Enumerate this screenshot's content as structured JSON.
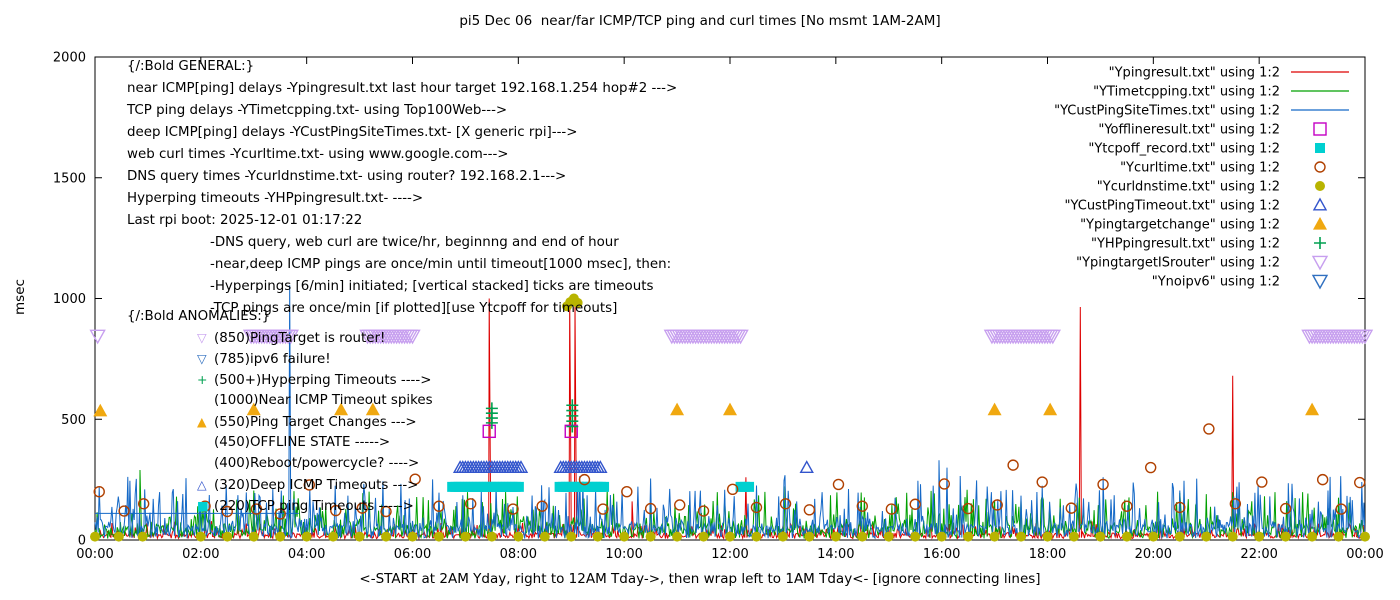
{
  "chart_data": {
    "type": "line+scatter",
    "title": "pi5 Dec 06  near/far ICMP/TCP ping and curl times [No msmt 1AM-2AM]",
    "ylabel": "msec",
    "xlabel": "<-START at 2AM Yday, right to 12AM Tday->, then wrap left to 1AM Tday<- [ignore connecting lines]",
    "xlim": [
      0,
      24
    ],
    "ylim": [
      0,
      2000
    ],
    "xticks": [
      "00:00",
      "02:00",
      "04:00",
      "06:00",
      "08:00",
      "10:00",
      "12:00",
      "14:00",
      "16:00",
      "18:00",
      "20:00",
      "22:00",
      "00:00"
    ],
    "yticks": [
      0,
      500,
      1000,
      1500,
      2000
    ],
    "grid": false,
    "legend_position": "top-right-inside",
    "series": [
      {
        "name": "Ypingresult",
        "legend": "\"Ypingresult.txt\" using 1:2",
        "style": "line",
        "color": "#dd0000",
        "width": 1,
        "gen": {
          "seed": 11,
          "base": 22,
          "amp": 55,
          "step": 0.02
        },
        "spikes": [
          [
            7.45,
            1000
          ],
          [
            8.97,
            1000
          ],
          [
            9.07,
            985
          ],
          [
            10.15,
            160
          ],
          [
            12.3,
            260
          ],
          [
            18.62,
            965
          ],
          [
            21.5,
            680
          ]
        ]
      },
      {
        "name": "YTimetcpping",
        "legend": "\"YTimetcpping.txt\" using 1:2",
        "style": "line",
        "color": "#00a000",
        "width": 1,
        "gen": {
          "seed": 22,
          "base": 55,
          "amp": 170,
          "step": 0.02
        },
        "spikes": [
          [
            0.85,
            290
          ],
          [
            3.0,
            205
          ],
          [
            6.3,
            165
          ],
          [
            10.5,
            175
          ],
          [
            13.9,
            185
          ],
          [
            17.5,
            165
          ],
          [
            21.0,
            190
          ],
          [
            23.5,
            175
          ]
        ]
      },
      {
        "name": "YCustPingSiteTimes",
        "legend": "\"YCustPingSiteTimes.txt\" using 1:2",
        "style": "line",
        "color": "#1569c7",
        "width": 1,
        "gen": {
          "seed": 33,
          "base": 60,
          "amp": 210,
          "step": 0.02
        },
        "spikes": [
          [
            3.68,
            1055
          ],
          [
            6.95,
            185
          ],
          [
            7.3,
            205
          ],
          [
            8.9,
            195
          ],
          [
            9.3,
            185
          ],
          [
            15.55,
            245
          ],
          [
            15.95,
            330
          ],
          [
            16.1,
            300
          ],
          [
            16.35,
            265
          ],
          [
            19.05,
            260
          ],
          [
            20.5,
            205
          ],
          [
            22.55,
            235
          ],
          [
            23.3,
            205
          ]
        ],
        "segments": [
          {
            "y": 110,
            "x1": 0.0,
            "x2": 3.85
          }
        ]
      },
      {
        "name": "Yofflineresult",
        "legend": "\"Yofflineresult.txt\" using 1:2",
        "style": "scatter",
        "marker": "square-open",
        "color": "#c400c4",
        "size": 6,
        "points": [
          [
            7.45,
            450
          ],
          [
            9.0,
            450
          ]
        ]
      },
      {
        "name": "Ytcpoff_record",
        "legend": "\"Ytcpoff_record.txt\" using 1:2",
        "style": "scatter",
        "marker": "square-filled",
        "color": "#00d0d0",
        "size": 5,
        "points": [
          [
            12.2,
            220
          ],
          [
            12.28,
            220
          ],
          [
            12.36,
            220
          ]
        ],
        "bands": [
          {
            "y": 220,
            "x1": 6.75,
            "x2": 8.05,
            "step": 0.06
          },
          {
            "y": 220,
            "x1": 8.78,
            "x2": 9.62,
            "step": 0.06
          }
        ]
      },
      {
        "name": "Ycurltime",
        "legend": "\"Ycurltime.txt\" using 1:2",
        "style": "scatter",
        "marker": "circle-open",
        "color": "#b04000",
        "size": 5,
        "points": [
          [
            0.08,
            200
          ],
          [
            0.55,
            120
          ],
          [
            0.92,
            150
          ],
          [
            2.08,
            140
          ],
          [
            2.5,
            118
          ],
          [
            3.05,
            128
          ],
          [
            3.5,
            108
          ],
          [
            4.05,
            228
          ],
          [
            4.55,
            122
          ],
          [
            5.05,
            132
          ],
          [
            5.5,
            118
          ],
          [
            6.05,
            252
          ],
          [
            6.5,
            140
          ],
          [
            7.1,
            150
          ],
          [
            7.9,
            128
          ],
          [
            8.45,
            140
          ],
          [
            9.25,
            250
          ],
          [
            9.6,
            128
          ],
          [
            10.05,
            200
          ],
          [
            10.5,
            130
          ],
          [
            11.05,
            145
          ],
          [
            11.5,
            120
          ],
          [
            12.05,
            210
          ],
          [
            12.5,
            135
          ],
          [
            13.05,
            150
          ],
          [
            13.5,
            125
          ],
          [
            14.05,
            230
          ],
          [
            14.5,
            140
          ],
          [
            15.05,
            128
          ],
          [
            15.5,
            148
          ],
          [
            16.05,
            232
          ],
          [
            16.5,
            130
          ],
          [
            17.05,
            145
          ],
          [
            17.35,
            310
          ],
          [
            17.9,
            240
          ],
          [
            18.45,
            132
          ],
          [
            19.05,
            230
          ],
          [
            19.5,
            140
          ],
          [
            19.95,
            300
          ],
          [
            20.5,
            135
          ],
          [
            21.05,
            460
          ],
          [
            21.55,
            150
          ],
          [
            22.05,
            240
          ],
          [
            22.5,
            130
          ],
          [
            23.2,
            250
          ],
          [
            23.55,
            128
          ],
          [
            23.9,
            238
          ]
        ]
      },
      {
        "name": "Ycurldnstime",
        "legend": "\"Ycurldnstime.txt\" using 1:2",
        "style": "scatter",
        "marker": "circle-filled",
        "color": "#b8b400",
        "size": 5,
        "points": [
          [
            8.92,
            968
          ],
          [
            8.98,
            985
          ],
          [
            9.05,
            1000
          ],
          [
            9.12,
            982
          ]
        ],
        "bands": [
          {
            "y": 14,
            "x1": 0.0,
            "x2": 0.9,
            "step": 0.45
          },
          {
            "y": 14,
            "x1": 2.0,
            "x2": 24.0,
            "step": 0.5
          }
        ]
      },
      {
        "name": "YCustPingTimeout",
        "legend": "\"YCustPingTimeout.txt\" using 1:2",
        "style": "scatter",
        "marker": "triangle-up-open",
        "color": "#3355cc",
        "size": 6,
        "points": [
          [
            13.45,
            300
          ]
        ],
        "bands": [
          {
            "y": 300,
            "x1": 6.9,
            "x2": 8.05,
            "step": 0.05
          },
          {
            "y": 300,
            "x1": 8.8,
            "x2": 9.55,
            "step": 0.05
          }
        ]
      },
      {
        "name": "Ypingtargetchange",
        "legend": "\"Ypingtargetchange\" using 1:2",
        "style": "scatter",
        "marker": "triangle-up-filled",
        "color": "#f0a810",
        "size": 7,
        "points": [
          [
            0.1,
            535
          ],
          [
            3.0,
            540
          ],
          [
            4.65,
            540
          ],
          [
            5.25,
            540
          ],
          [
            11.0,
            540
          ],
          [
            12.0,
            540
          ],
          [
            17.0,
            540
          ],
          [
            18.05,
            540
          ],
          [
            23.0,
            540
          ]
        ]
      },
      {
        "name": "YHPpingresult",
        "legend": "\"YHPpingresult.txt\" using 1:2",
        "style": "scatter",
        "marker": "plus",
        "color": "#00a050",
        "size": 6,
        "points": [
          [
            7.5,
            485
          ],
          [
            7.5,
            505
          ],
          [
            7.5,
            525
          ],
          [
            7.5,
            545
          ],
          [
            9.02,
            470
          ],
          [
            9.02,
            492
          ],
          [
            9.02,
            514
          ],
          [
            9.02,
            536
          ],
          [
            9.02,
            558
          ]
        ]
      },
      {
        "name": "YpingtargetISrouter",
        "legend": "\"YpingtargetISrouter\" using 1:2",
        "style": "scatter",
        "marker": "triangle-down-open",
        "color": "#c79fef",
        "size": 7,
        "points": [
          [
            0.05,
            845
          ]
        ],
        "bands": [
          {
            "y": 845,
            "x1": 2.95,
            "x2": 3.7,
            "step": 0.05
          },
          {
            "y": 845,
            "x1": 5.15,
            "x2": 6.0,
            "step": 0.05
          },
          {
            "y": 845,
            "x1": 10.9,
            "x2": 12.2,
            "step": 0.05
          },
          {
            "y": 845,
            "x1": 16.95,
            "x2": 18.1,
            "step": 0.05
          },
          {
            "y": 845,
            "x1": 22.95,
            "x2": 24.0,
            "step": 0.05
          }
        ]
      },
      {
        "name": "Ynoipv6",
        "legend": "\"Ynoipv6\" using 1:2",
        "style": "scatter",
        "marker": "triangle-down-open",
        "color": "#3070c0",
        "size": 7,
        "points": []
      }
    ],
    "annotations": {
      "general": [
        {
          "indent": 0,
          "text": "{/:Bold GENERAL:}"
        },
        {
          "indent": 0,
          "text": "near ICMP[ping] delays -Ypingresult.txt last hour target 192.168.1.254 hop#2 --->"
        },
        {
          "indent": 0,
          "text": "TCP ping delays -YTimetcpping.txt- using Top100Web--->"
        },
        {
          "indent": 0,
          "text": "deep ICMP[ping] delays -YCustPingSiteTimes.txt- [X generic rpi]--->"
        },
        {
          "indent": 0,
          "text": "web curl times -Ycurltime.txt- using www.google.com--->"
        },
        {
          "indent": 0,
          "text": "DNS query times -Ycurldnstime.txt- using router? 192.168.2.1--->"
        },
        {
          "indent": 0,
          "text": "Hyperping timeouts -YHPpingresult.txt- ---->"
        },
        {
          "indent": 0,
          "text": "Last rpi boot: 2025-12-01 01:17:22"
        },
        {
          "indent": 1,
          "text": "-DNS query, web curl are twice/hr, beginnng and end of hour"
        },
        {
          "indent": 1,
          "text": "-near,deep ICMP pings are once/min until timeout[1000 msec], then:"
        },
        {
          "indent": 1,
          "text": "-Hyperpings [6/min] initiated; [vertical stacked] ticks are timeouts"
        },
        {
          "indent": 1,
          "text": "-TCP pings are once/min [if plotted][use Ytcpoff for timeouts]"
        }
      ],
      "anomalies_header": "{/:Bold ANOMALIES:}",
      "anomalies": [
        {
          "glyph": "▽",
          "color": "#c79fef",
          "icon": "triangle-down-icon",
          "text": "(850)PingTarget is router!"
        },
        {
          "glyph": "▽",
          "color": "#3070c0",
          "icon": "triangle-down-icon",
          "text": "(785)ipv6 failure!"
        },
        {
          "glyph": "+",
          "color": "#00a050",
          "icon": "plus-icon",
          "text": "(500+)Hyperping Timeouts ---->"
        },
        {
          "glyph": "",
          "color": "",
          "icon": "",
          "text": "(1000)Near ICMP Timeout spikes"
        },
        {
          "glyph": "▲",
          "color": "#f0a810",
          "icon": "triangle-up-icon",
          "text": "(550)Ping Target Changes --->"
        },
        {
          "glyph": "",
          "color": "",
          "icon": "",
          "text": "(450)OFFLINE STATE ----->"
        },
        {
          "glyph": "",
          "color": "",
          "icon": "",
          "text": "(400)Reboot/powercycle? ---->"
        },
        {
          "glyph": "△",
          "color": "#3355cc",
          "icon": "triangle-up-icon",
          "text": "(320)Deep ICMP Timeouts --->"
        },
        {
          "glyph": "■",
          "color": "#00d0d0",
          "icon": "square-icon",
          "text": "(220)TCP ping Timeouts ----->"
        }
      ]
    }
  }
}
